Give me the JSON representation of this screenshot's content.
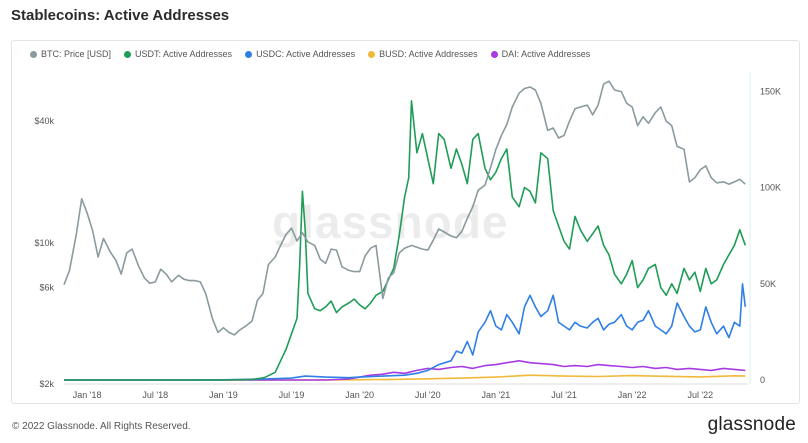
{
  "title": "Stablecoins: Active Addresses",
  "watermark": "glassnode",
  "footer": {
    "copyright": "© 2022 Glassnode. All Rights Reserved.",
    "logo": "glassnode"
  },
  "chart_data": {
    "type": "line",
    "title": "Stablecoins: Active Addresses",
    "legend_position": "top-left",
    "grid": false,
    "x_ticks": [
      "Jan '18",
      "Jul '18",
      "Jan '19",
      "Jul '19",
      "Jan '20",
      "Jul '20",
      "Jan '21",
      "Jul '21",
      "Jan '22",
      "Jul '22"
    ],
    "x_range": [
      2017.83,
      2022.85
    ],
    "y_left": {
      "scale": "log",
      "ticks": [
        "$2k",
        "$6k",
        "$10k",
        "$40k"
      ],
      "tick_values": [
        2000,
        6000,
        10000,
        40000
      ],
      "range": [
        2000,
        70000
      ]
    },
    "y_right": {
      "scale": "linear",
      "ticks": [
        "0",
        "50K",
        "100K",
        "150K"
      ],
      "tick_values": [
        0,
        50000,
        100000,
        150000
      ],
      "range": [
        0,
        160000
      ]
    },
    "series": [
      {
        "name": "BTC: Price [USD]",
        "color": "#8a9a9e",
        "axis": "left",
        "x": [
          2017.83,
          2017.87,
          2017.92,
          2017.96,
          2018.0,
          2018.04,
          2018.08,
          2018.12,
          2018.17,
          2018.21,
          2018.25,
          2018.29,
          2018.33,
          2018.38,
          2018.42,
          2018.46,
          2018.5,
          2018.54,
          2018.58,
          2018.62,
          2018.67,
          2018.71,
          2018.75,
          2018.79,
          2018.83,
          2018.87,
          2018.92,
          2018.96,
          2019.0,
          2019.04,
          2019.08,
          2019.12,
          2019.17,
          2019.21,
          2019.25,
          2019.29,
          2019.33,
          2019.38,
          2019.42,
          2019.46,
          2019.5,
          2019.54,
          2019.58,
          2019.62,
          2019.67,
          2019.71,
          2019.75,
          2019.79,
          2019.83,
          2019.87,
          2019.92,
          2019.96,
          2020.0,
          2020.04,
          2020.08,
          2020.12,
          2020.17,
          2020.21,
          2020.25,
          2020.29,
          2020.33,
          2020.38,
          2020.42,
          2020.46,
          2020.5,
          2020.54,
          2020.58,
          2020.62,
          2020.67,
          2020.71,
          2020.75,
          2020.79,
          2020.83,
          2020.87,
          2020.92,
          2020.96,
          2021.0,
          2021.04,
          2021.08,
          2021.12,
          2021.17,
          2021.21,
          2021.25,
          2021.29,
          2021.33,
          2021.38,
          2021.42,
          2021.46,
          2021.5,
          2021.54,
          2021.58,
          2021.62,
          2021.67,
          2021.71,
          2021.75,
          2021.79,
          2021.83,
          2021.87,
          2021.92,
          2021.96,
          2022.0,
          2022.04,
          2022.08,
          2022.12,
          2022.17,
          2022.21,
          2022.25,
          2022.29,
          2022.33,
          2022.38,
          2022.42,
          2022.46,
          2022.5,
          2022.54,
          2022.58,
          2022.62,
          2022.67,
          2022.71,
          2022.75,
          2022.79,
          2022.83
        ],
        "y": [
          6200,
          7300,
          11000,
          16500,
          14000,
          11500,
          8500,
          10500,
          9000,
          8200,
          7000,
          8900,
          9300,
          7600,
          6700,
          6300,
          6400,
          7400,
          7000,
          6400,
          6900,
          6600,
          6500,
          6500,
          6400,
          5600,
          4200,
          3600,
          3800,
          3600,
          3500,
          3700,
          3900,
          4100,
          5200,
          5600,
          7800,
          8500,
          9700,
          11000,
          11800,
          10200,
          11200,
          10100,
          9700,
          8300,
          7900,
          9300,
          9200,
          7600,
          7300,
          7200,
          7200,
          8600,
          9400,
          9700,
          5300,
          6700,
          7100,
          8900,
          9400,
          9700,
          9500,
          9300,
          9200,
          10300,
          11700,
          11300,
          10800,
          10600,
          11400,
          13200,
          15100,
          18200,
          19300,
          23500,
          29000,
          34000,
          38500,
          47000,
          55000,
          58000,
          59000,
          57000,
          49000,
          36000,
          37000,
          33000,
          34000,
          40000,
          46000,
          47000,
          48000,
          43000,
          48000,
          61000,
          63000,
          57000,
          56000,
          49000,
          47000,
          38000,
          42000,
          39000,
          44000,
          47000,
          40000,
          38000,
          30000,
          29000,
          20000,
          21000,
          23000,
          24000,
          21000,
          19800,
          20000,
          19500,
          20000,
          20600,
          19500
        ]
      },
      {
        "name": "USDT: Active Addresses",
        "color": "#1f9d57",
        "axis": "right",
        "x": [
          2017.83,
          2018.0,
          2018.25,
          2018.5,
          2018.75,
          2019.0,
          2019.2,
          2019.3,
          2019.38,
          2019.42,
          2019.46,
          2019.5,
          2019.54,
          2019.56,
          2019.58,
          2019.6,
          2019.62,
          2019.67,
          2019.71,
          2019.75,
          2019.79,
          2019.83,
          2019.87,
          2019.92,
          2019.96,
          2020.0,
          2020.04,
          2020.08,
          2020.12,
          2020.17,
          2020.21,
          2020.25,
          2020.29,
          2020.33,
          2020.36,
          2020.38,
          2020.42,
          2020.46,
          2020.5,
          2020.54,
          2020.58,
          2020.62,
          2020.67,
          2020.71,
          2020.75,
          2020.79,
          2020.83,
          2020.87,
          2020.92,
          2020.96,
          2021.0,
          2021.04,
          2021.08,
          2021.12,
          2021.17,
          2021.21,
          2021.25,
          2021.29,
          2021.33,
          2021.38,
          2021.42,
          2021.46,
          2021.5,
          2021.54,
          2021.58,
          2021.62,
          2021.67,
          2021.71,
          2021.75,
          2021.79,
          2021.83,
          2021.87,
          2021.92,
          2021.96,
          2022.0,
          2022.04,
          2022.08,
          2022.12,
          2022.17,
          2022.21,
          2022.25,
          2022.29,
          2022.33,
          2022.38,
          2022.42,
          2022.46,
          2022.5,
          2022.54,
          2022.58,
          2022.62,
          2022.67,
          2022.71,
          2022.75,
          2022.79,
          2022.83
        ],
        "y": [
          0,
          0,
          0,
          0,
          0,
          0,
          200,
          1200,
          4000,
          10000,
          16000,
          24000,
          32000,
          60000,
          98000,
          78000,
          45000,
          37000,
          36000,
          38000,
          41000,
          35000,
          38000,
          40000,
          42000,
          39000,
          37000,
          40000,
          44000,
          46000,
          52000,
          58000,
          75000,
          95000,
          105000,
          145000,
          118000,
          128000,
          115000,
          102000,
          128000,
          125000,
          110000,
          120000,
          112000,
          102000,
          125000,
          128000,
          110000,
          104000,
          108000,
          115000,
          120000,
          95000,
          90000,
          100000,
          98000,
          92000,
          118000,
          115000,
          88000,
          80000,
          72000,
          68000,
          85000,
          78000,
          72000,
          76000,
          80000,
          70000,
          65000,
          55000,
          50000,
          55000,
          62000,
          48000,
          52000,
          58000,
          60000,
          48000,
          44000,
          50000,
          45000,
          58000,
          52000,
          56000,
          46000,
          58000,
          50000,
          52000,
          60000,
          65000,
          70000,
          78000,
          70000
        ]
      },
      {
        "name": "USDC: Active Addresses",
        "color": "#2f7fe6",
        "axis": "right",
        "x": [
          2017.83,
          2018.5,
          2019.0,
          2019.3,
          2019.5,
          2019.6,
          2019.75,
          2019.92,
          2020.0,
          2020.17,
          2020.33,
          2020.42,
          2020.5,
          2020.58,
          2020.67,
          2020.71,
          2020.75,
          2020.79,
          2020.83,
          2020.87,
          2020.92,
          2020.96,
          2021.0,
          2021.04,
          2021.08,
          2021.12,
          2021.17,
          2021.21,
          2021.25,
          2021.29,
          2021.33,
          2021.38,
          2021.42,
          2021.46,
          2021.5,
          2021.54,
          2021.58,
          2021.62,
          2021.67,
          2021.71,
          2021.75,
          2021.79,
          2021.83,
          2021.87,
          2021.92,
          2021.96,
          2022.0,
          2022.04,
          2022.08,
          2022.12,
          2022.17,
          2022.21,
          2022.25,
          2022.29,
          2022.33,
          2022.38,
          2022.42,
          2022.46,
          2022.5,
          2022.54,
          2022.58,
          2022.62,
          2022.67,
          2022.71,
          2022.75,
          2022.79,
          2022.81,
          2022.83
        ],
        "y": [
          0,
          0,
          100,
          500,
          1000,
          2000,
          1500,
          1200,
          1500,
          2000,
          2500,
          3500,
          5000,
          8000,
          10000,
          15000,
          14000,
          20000,
          13000,
          25000,
          30000,
          36000,
          28000,
          26000,
          34000,
          30000,
          24000,
          38000,
          44000,
          38000,
          33000,
          36000,
          44000,
          30000,
          28000,
          26000,
          30000,
          28000,
          27000,
          30000,
          32000,
          26000,
          29000,
          30000,
          34000,
          28000,
          26000,
          30000,
          31000,
          36000,
          28000,
          26000,
          24000,
          28000,
          40000,
          33000,
          28000,
          25000,
          26000,
          38000,
          30000,
          24000,
          28000,
          22000,
          30000,
          28000,
          50000,
          38000
        ]
      },
      {
        "name": "BUSD: Active Addresses",
        "color": "#f0b93a",
        "axis": "right",
        "x": [
          2017.83,
          2019.5,
          2019.92,
          2020.25,
          2020.5,
          2020.75,
          2021.0,
          2021.25,
          2021.5,
          2021.75,
          2022.0,
          2022.25,
          2022.5,
          2022.75,
          2022.83
        ],
        "y": [
          0,
          0,
          100,
          300,
          600,
          1000,
          1500,
          2500,
          2000,
          1800,
          2300,
          1900,
          1600,
          2200,
          2000
        ]
      },
      {
        "name": "DAI: Active Addresses",
        "color": "#a63be3",
        "axis": "right",
        "x": [
          2017.83,
          2019.75,
          2019.92,
          2020.0,
          2020.08,
          2020.17,
          2020.25,
          2020.33,
          2020.42,
          2020.5,
          2020.58,
          2020.67,
          2020.75,
          2020.83,
          2020.92,
          2021.0,
          2021.08,
          2021.17,
          2021.25,
          2021.33,
          2021.42,
          2021.5,
          2021.58,
          2021.67,
          2021.75,
          2021.83,
          2021.92,
          2022.0,
          2022.08,
          2022.17,
          2022.25,
          2022.33,
          2022.42,
          2022.5,
          2022.58,
          2022.67,
          2022.75,
          2022.83
        ],
        "y": [
          0,
          0,
          500,
          1500,
          2500,
          3000,
          4000,
          3500,
          5000,
          6000,
          5500,
          6500,
          7000,
          6000,
          7500,
          8000,
          9000,
          10000,
          9000,
          8500,
          8000,
          7000,
          7500,
          7000,
          8000,
          7500,
          7000,
          6500,
          7000,
          6000,
          6500,
          5500,
          6000,
          5500,
          5000,
          6000,
          5500,
          5000
        ]
      }
    ]
  }
}
